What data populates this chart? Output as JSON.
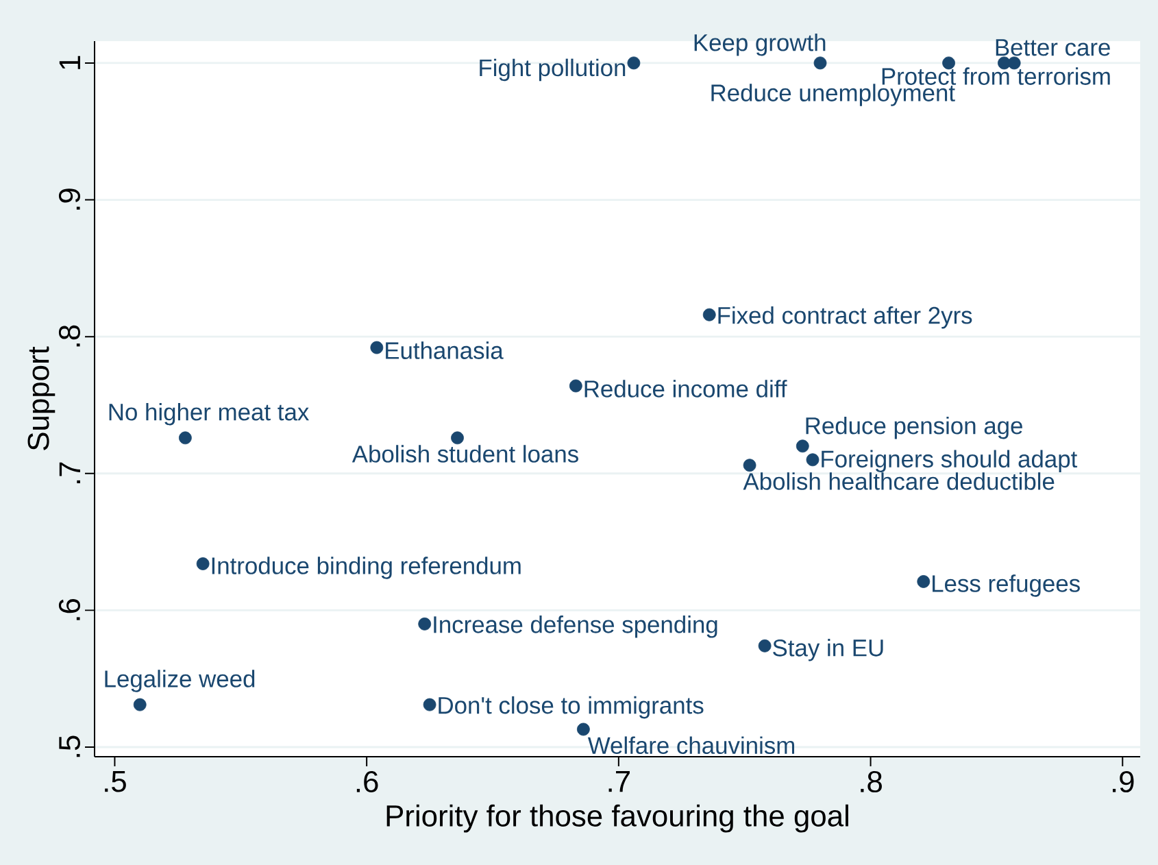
{
  "chart_data": {
    "type": "scatter",
    "xlabel": "Priority for those favouring the goal",
    "ylabel": "Support",
    "xlim": [
      0.492,
      0.907
    ],
    "ylim": [
      0.493,
      1.016
    ],
    "xticks": [
      {
        "value": 0.5,
        "label": ".5"
      },
      {
        "value": 0.6,
        "label": ".6"
      },
      {
        "value": 0.7,
        "label": ".7"
      },
      {
        "value": 0.8,
        "label": ".8"
      },
      {
        "value": 0.9,
        "label": ".9"
      }
    ],
    "yticks": [
      {
        "value": 0.5,
        "label": ".5"
      },
      {
        "value": 0.6,
        "label": ".6"
      },
      {
        "value": 0.7,
        "label": ".7"
      },
      {
        "value": 0.8,
        "label": ".8"
      },
      {
        "value": 0.9,
        "label": ".9"
      },
      {
        "value": 1,
        "label": "1"
      }
    ],
    "grid": "y",
    "marker": "circle",
    "series": [
      {
        "color": "#1a476f",
        "x": [
          0.706,
          0.78,
          0.831,
          0.853,
          0.857,
          0.736,
          0.604,
          0.683,
          0.528,
          0.636,
          0.773,
          0.777,
          0.752,
          0.535,
          0.821,
          0.623,
          0.758,
          0.51,
          0.625,
          0.686
        ],
        "values": [
          1.0,
          1.0,
          1.0,
          1.0,
          1.0,
          0.816,
          0.792,
          0.764,
          0.726,
          0.726,
          0.72,
          0.71,
          0.706,
          0.634,
          0.621,
          0.59,
          0.574,
          0.531,
          0.531,
          0.513
        ]
      }
    ],
    "annotations": [
      {
        "text": "Fight pollution",
        "x": 0.706,
        "y": 1.0
      },
      {
        "text": "Keep growth",
        "x": 0.78,
        "y": 1.0
      },
      {
        "text": "Reduce unemployment",
        "x": 0.831,
        "y": 1.0
      },
      {
        "text": "Protect from terrorism",
        "x": 0.853,
        "y": 1.0
      },
      {
        "text": "Better care",
        "x": 0.857,
        "y": 1.0
      },
      {
        "text": "Fixed contract after 2yrs",
        "x": 0.736,
        "y": 0.816
      },
      {
        "text": "Euthanasia",
        "x": 0.604,
        "y": 0.792
      },
      {
        "text": "Reduce income diff",
        "x": 0.683,
        "y": 0.764
      },
      {
        "text": "No higher meat tax",
        "x": 0.528,
        "y": 0.726
      },
      {
        "text": "Abolish student loans",
        "x": 0.636,
        "y": 0.726
      },
      {
        "text": "Reduce pension age",
        "x": 0.773,
        "y": 0.72
      },
      {
        "text": "Foreigners should adapt",
        "x": 0.777,
        "y": 0.71
      },
      {
        "text": "Abolish healthcare deductible",
        "x": 0.752,
        "y": 0.706
      },
      {
        "text": "Introduce binding referendum",
        "x": 0.535,
        "y": 0.634
      },
      {
        "text": "Less refugees",
        "x": 0.821,
        "y": 0.621
      },
      {
        "text": "Increase defense spending",
        "x": 0.623,
        "y": 0.59
      },
      {
        "text": "Stay in EU",
        "x": 0.758,
        "y": 0.574
      },
      {
        "text": "Legalize weed",
        "x": 0.51,
        "y": 0.531
      },
      {
        "text": "Don't close to immigrants",
        "x": 0.625,
        "y": 0.531
      },
      {
        "text": "Welfare chauvinism",
        "x": 0.686,
        "y": 0.513
      }
    ]
  }
}
